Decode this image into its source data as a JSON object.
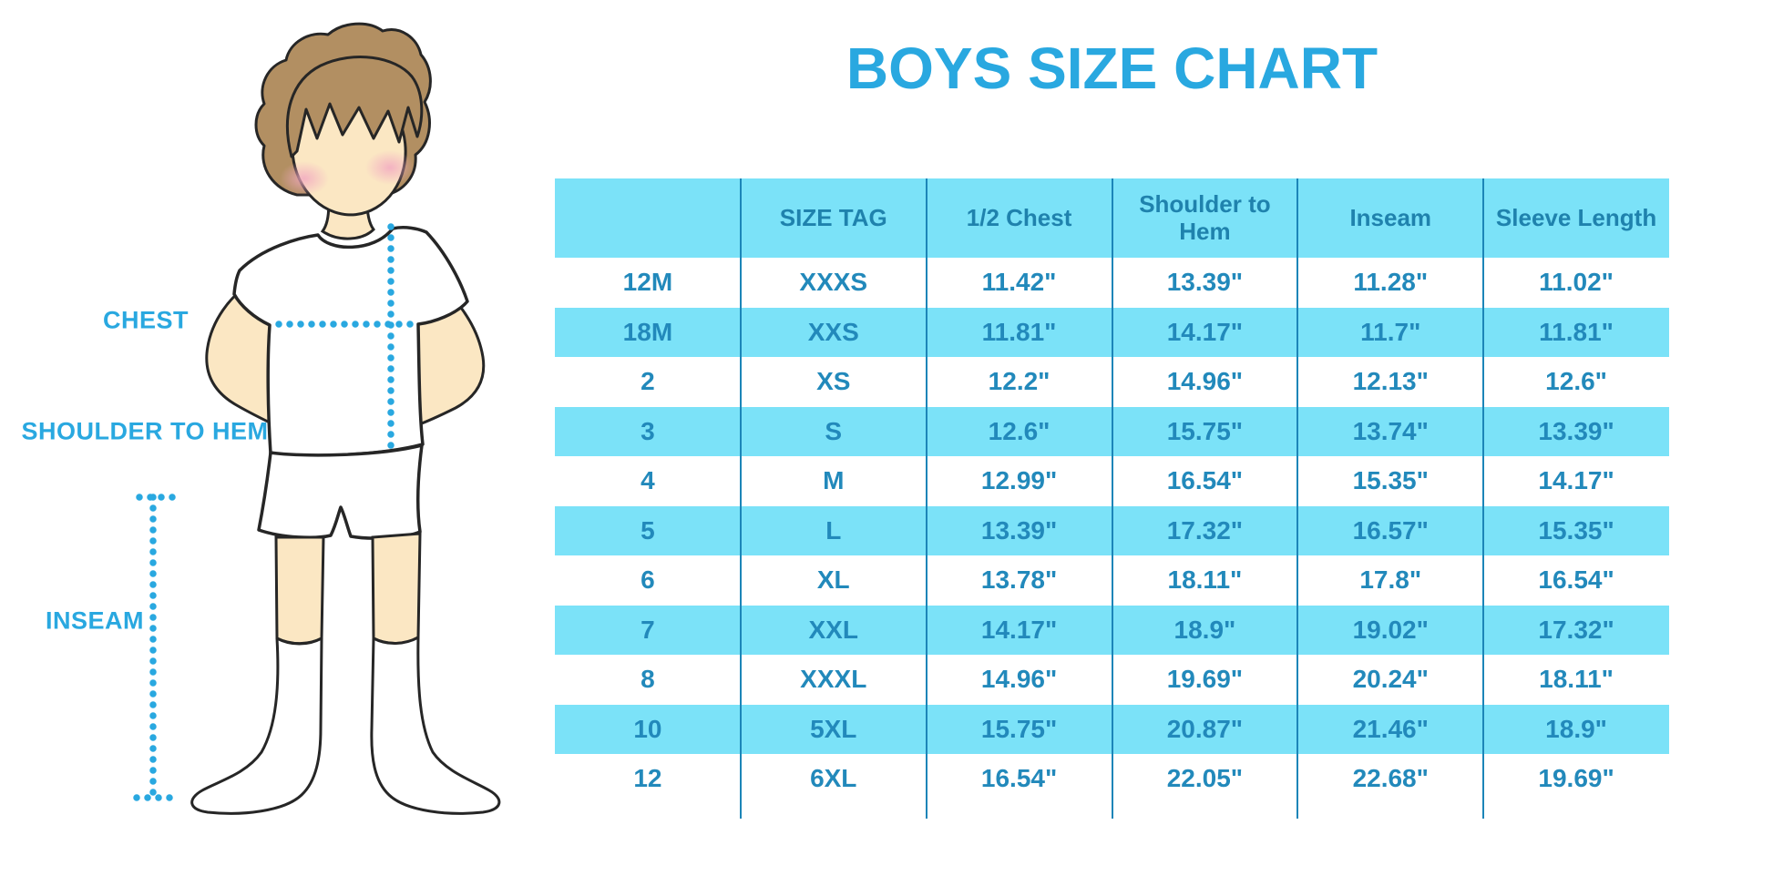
{
  "title": "BOYS SIZE CHART",
  "diagram": {
    "labels": {
      "chest": "CHEST",
      "shoulder_to_hem": "SHOULDER TO HEM",
      "inseam": "INSEAM"
    }
  },
  "chart_data": {
    "type": "table",
    "title": "BOYS SIZE CHART",
    "columns": [
      "",
      "SIZE TAG",
      "1/2 Chest",
      "Shoulder to Hem",
      "Inseam",
      "Sleeve Length"
    ],
    "rows": [
      [
        "12M",
        "XXXS",
        "11.42\"",
        "13.39\"",
        "11.28\"",
        "11.02\""
      ],
      [
        "18M",
        "XXS",
        "11.81\"",
        "14.17\"",
        "11.7\"",
        "11.81\""
      ],
      [
        "2",
        "XS",
        "12.2\"",
        "14.96\"",
        "12.13\"",
        "12.6\""
      ],
      [
        "3",
        "S",
        "12.6\"",
        "15.75\"",
        "13.74\"",
        "13.39\""
      ],
      [
        "4",
        "M",
        "12.99\"",
        "16.54\"",
        "15.35\"",
        "14.17\""
      ],
      [
        "5",
        "L",
        "13.39\"",
        "17.32\"",
        "16.57\"",
        "15.35\""
      ],
      [
        "6",
        "XL",
        "13.78\"",
        "18.11\"",
        "17.8\"",
        "16.54\""
      ],
      [
        "7",
        "XXL",
        "14.17\"",
        "18.9\"",
        "19.02\"",
        "17.32\""
      ],
      [
        "8",
        "XXXL",
        "14.96\"",
        "19.69\"",
        "20.24\"",
        "18.11\""
      ],
      [
        "10",
        "5XL",
        "15.75\"",
        "20.87\"",
        "21.46\"",
        "18.9\""
      ],
      [
        "12",
        "6XL",
        "16.54\"",
        "22.05\"",
        "22.68\"",
        "19.69\""
      ]
    ],
    "layout": {
      "alternating_row_fill": true,
      "first_data_row_fill": "white",
      "grid": "vertical-dividers-only"
    }
  },
  "colors": {
    "title": "#29A8E0",
    "label": "#29A8E0",
    "band": "#7BE2F8",
    "table_text": "#2289BB",
    "header_text": "#1F82AD",
    "divider": "#1C85B8",
    "dotted": "#29A8E0",
    "skin": "#FBE7C3",
    "hair": "#B28F62",
    "cheek": "#F2A9C2",
    "outline": "#262626"
  }
}
